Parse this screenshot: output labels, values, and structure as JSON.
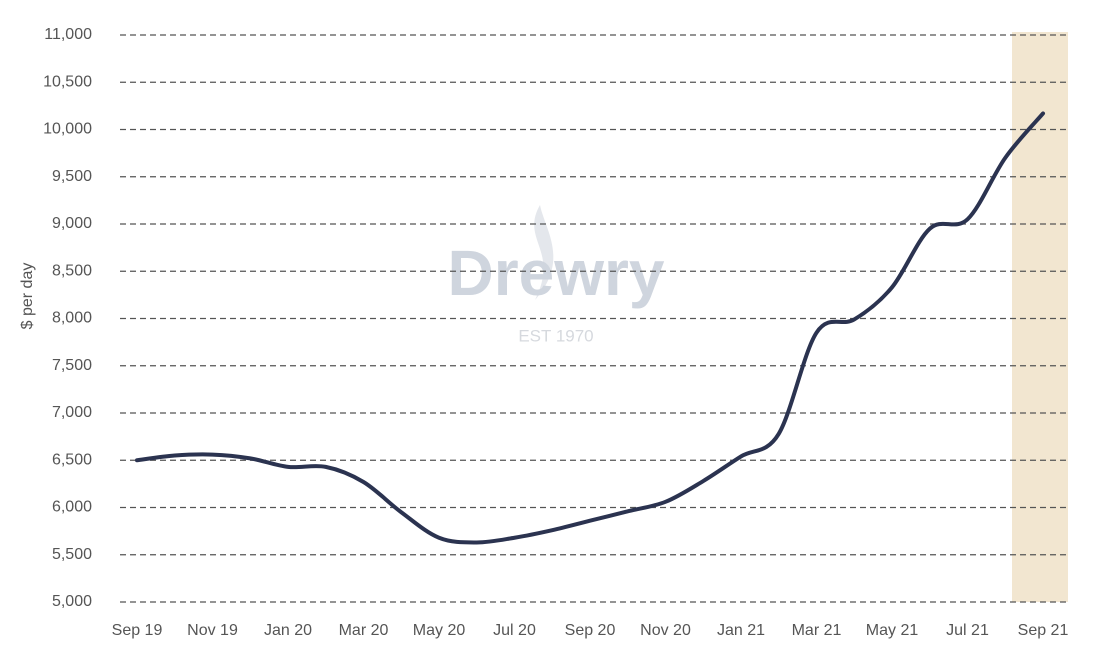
{
  "chart_data": {
    "type": "line",
    "y_label": "$ per day",
    "watermark": {
      "name": "Drewry",
      "subtitle": "EST 1970"
    },
    "categories": [
      "Sep 19",
      null,
      "Nov 19",
      null,
      "Jan 20",
      null,
      "Mar 20",
      null,
      "May 20",
      null,
      "Jul 20",
      null,
      "Sep 20",
      null,
      "Nov 20",
      null,
      "Jan 21",
      null,
      "Mar 21",
      null,
      "May 21",
      null,
      "Jul 21",
      null,
      "Sep 21"
    ],
    "series": [
      {
        "color": "#2b3350",
        "values": [
          6500,
          6550,
          6560,
          6520,
          6430,
          6430,
          6270,
          5950,
          5680,
          5630,
          5680,
          5760,
          5860,
          5960,
          6060,
          6280,
          6540,
          6780,
          7850,
          7990,
          8330,
          8950,
          9050,
          9700,
          10170
        ]
      }
    ],
    "ylim": [
      5000,
      11000
    ],
    "yticks": [
      {
        "value": 5000,
        "label": "5,000"
      },
      {
        "value": 5500,
        "label": "5,500"
      },
      {
        "value": 6000,
        "label": "6,000"
      },
      {
        "value": 6500,
        "label": "6,500"
      },
      {
        "value": 7000,
        "label": "7,000"
      },
      {
        "value": 7500,
        "label": "7,500"
      },
      {
        "value": 8000,
        "label": "8,000"
      },
      {
        "value": 8500,
        "label": "8,500"
      },
      {
        "value": 9000,
        "label": "9,000"
      },
      {
        "value": 9500,
        "label": "9,500"
      },
      {
        "value": 10000,
        "label": "10,000"
      },
      {
        "value": 10500,
        "label": "10,500"
      },
      {
        "value": 11000,
        "label": "11,000"
      }
    ],
    "grid": true
  }
}
